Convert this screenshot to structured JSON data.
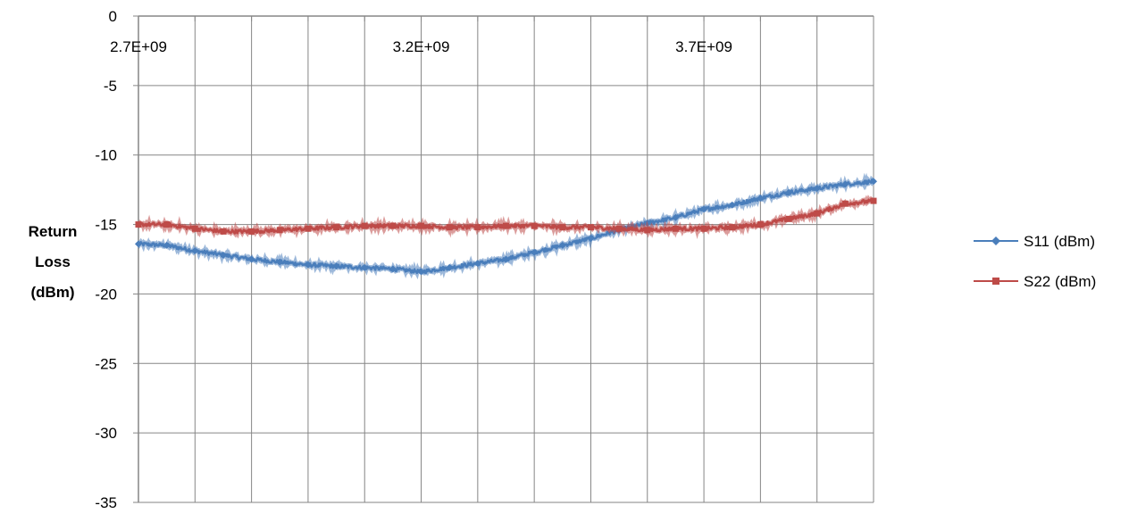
{
  "chart_data": {
    "type": "line",
    "title": "",
    "xlabel": "",
    "ylabel": "Return Loss (dBm)",
    "ylabel_lines": [
      "Return",
      "Loss",
      "(dBm)"
    ],
    "xlim": [
      2700000000.0,
      4000000000.0
    ],
    "ylim": [
      -35,
      0
    ],
    "y_ticks": [
      0,
      -5,
      -10,
      -15,
      -20,
      -25,
      -30,
      -35
    ],
    "y_tick_labels": [
      "0",
      "-5",
      "-10",
      "-15",
      "-20",
      "-25",
      "-30",
      "-35"
    ],
    "x_ticks": [
      2700000000.0,
      3200000000.0,
      3700000000.0
    ],
    "x_tick_labels": [
      "2.7E+09",
      "3.2E+09",
      "3.7E+09"
    ],
    "x_grid_step": 100000000.0,
    "grid": true,
    "legend_position": "right",
    "x": [
      2700000000.0,
      2750000000.0,
      2800000000.0,
      2850000000.0,
      2900000000.0,
      2950000000.0,
      3000000000.0,
      3050000000.0,
      3100000000.0,
      3150000000.0,
      3200000000.0,
      3250000000.0,
      3300000000.0,
      3350000000.0,
      3400000000.0,
      3450000000.0,
      3500000000.0,
      3550000000.0,
      3600000000.0,
      3650000000.0,
      3700000000.0,
      3750000000.0,
      3800000000.0,
      3850000000.0,
      3900000000.0,
      3950000000.0,
      4000000000.0
    ],
    "series": [
      {
        "name": "S11 (dBm)",
        "color": "#4a7ebb",
        "marker": "diamond",
        "values": [
          -16.4,
          -16.5,
          -16.9,
          -17.2,
          -17.5,
          -17.7,
          -17.9,
          -18.0,
          -18.1,
          -18.2,
          -18.4,
          -18.1,
          -17.8,
          -17.5,
          -17.0,
          -16.5,
          -16.0,
          -15.4,
          -14.9,
          -14.5,
          -13.9,
          -13.6,
          -13.1,
          -12.7,
          -12.4,
          -12.1,
          -11.9
        ]
      },
      {
        "name": "S22 (dBm)",
        "color": "#be4b48",
        "marker": "square",
        "values": [
          -15.0,
          -15.0,
          -15.3,
          -15.5,
          -15.5,
          -15.4,
          -15.3,
          -15.2,
          -15.1,
          -15.1,
          -15.1,
          -15.2,
          -15.2,
          -15.1,
          -15.1,
          -15.2,
          -15.2,
          -15.3,
          -15.4,
          -15.3,
          -15.3,
          -15.2,
          -15.0,
          -14.6,
          -14.2,
          -13.5,
          -13.3
        ]
      }
    ]
  }
}
